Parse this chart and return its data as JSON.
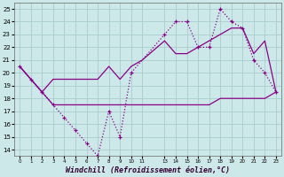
{
  "xlabel": "Windchill (Refroidissement éolien,°C)",
  "background_color": "#cde8e8",
  "grid_color": "#aacccc",
  "line_color": "#880088",
  "ylim": [
    13.5,
    25.5
  ],
  "xlim": [
    -0.5,
    23.5
  ],
  "yticks": [
    14,
    15,
    16,
    17,
    18,
    19,
    20,
    21,
    22,
    23,
    24,
    25
  ],
  "line1_x": [
    0,
    1,
    2,
    3,
    4,
    5,
    6,
    7,
    8,
    9,
    10,
    11,
    13,
    14,
    15,
    16,
    17,
    18,
    19,
    20,
    21,
    22,
    23
  ],
  "line1_y": [
    20.5,
    19.5,
    18.5,
    17.5,
    17.5,
    17.5,
    17.5,
    17.5,
    17.5,
    17.5,
    17.5,
    17.5,
    17.5,
    17.5,
    17.5,
    17.5,
    17.5,
    18.0,
    18.0,
    18.0,
    18.0,
    18.0,
    18.5
  ],
  "line2_x": [
    0,
    1,
    2,
    3,
    4,
    5,
    6,
    7,
    8,
    9,
    10,
    11,
    13,
    14,
    15,
    16,
    17,
    18,
    19,
    20,
    21,
    22,
    23
  ],
  "line2_y": [
    20.5,
    19.5,
    18.5,
    19.5,
    19.5,
    19.5,
    19.5,
    19.5,
    20.5,
    19.5,
    20.5,
    21.0,
    22.5,
    21.5,
    21.5,
    22.0,
    22.5,
    23.0,
    23.5,
    23.5,
    21.5,
    22.5,
    18.5
  ],
  "line3_x": [
    0,
    1,
    2,
    3,
    4,
    5,
    6,
    7,
    8,
    9,
    10,
    13,
    14,
    15,
    16,
    17,
    18,
    19,
    20,
    21,
    22,
    23
  ],
  "line3_y": [
    20.5,
    19.5,
    18.5,
    17.5,
    16.5,
    15.5,
    14.5,
    13.5,
    17.0,
    15.0,
    20.0,
    23.0,
    24.0,
    24.0,
    22.0,
    22.0,
    25.0,
    24.0,
    23.5,
    21.0,
    20.0,
    18.5
  ]
}
